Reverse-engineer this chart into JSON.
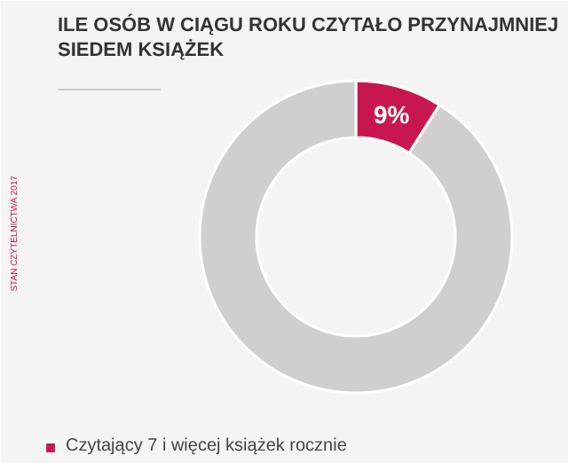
{
  "chart_data": {
    "type": "donut",
    "title": "ILE OSÓB W CIĄGU ROKU CZYTAŁO PRZYNAJMNIEJ\nSIEDEM KSIĄŻEK",
    "categories": [
      "Czytający 7 i więcej książek rocznie",
      null
    ],
    "values": [
      9,
      91
    ],
    "colors": [
      "#c8174f",
      "#cfcfcf"
    ],
    "value_labels": [
      "9%",
      null
    ],
    "legend": "bottom left",
    "annotations": [
      "STAN CZYTELNICTWA 2017"
    ]
  }
}
